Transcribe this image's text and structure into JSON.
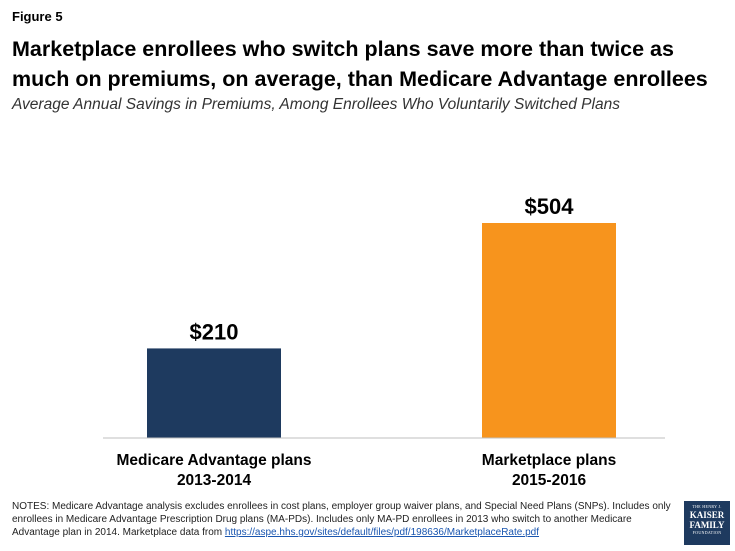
{
  "figure_label": "Figure 5",
  "chart_data": {
    "type": "bar",
    "title": "Marketplace enrollees who switch plans save more than twice as much on premiums, on average, than Medicare Advantage enrollees",
    "subtitle": "Average Annual Savings in Premiums, Among Enrollees Who Voluntarily Switched Plans",
    "categories": [
      [
        "Medicare Advantage plans",
        "2013-2014"
      ],
      [
        "Marketplace plans",
        "2015-2016"
      ]
    ],
    "values": [
      210,
      504
    ],
    "value_labels": [
      "$210",
      "$504"
    ],
    "colors": [
      "#1e3a5f",
      "#f7941d"
    ],
    "ylim": [
      0,
      504
    ],
    "xlabel": "",
    "ylabel": "",
    "grid": false
  },
  "notes": {
    "text": "NOTES: Medicare Advantage analysis excludes enrollees in cost plans, employer group waiver plans, and Special Need Plans (SNPs). Includes only enrollees in Medicare Advantage Prescription Drug plans (MA-PDs). Includes only MA-PD enrollees in 2013 who switch to another Medicare Advantage plan in 2014.  Marketplace data from ",
    "link": "https://aspe.hhs.gov/sites/default/files/pdf/198636/MarketplaceRate.pdf"
  },
  "logo": {
    "line1": "THE HENRY J.",
    "line2": "KAISER",
    "line3": "FAMILY",
    "line4": "FOUNDATION"
  }
}
